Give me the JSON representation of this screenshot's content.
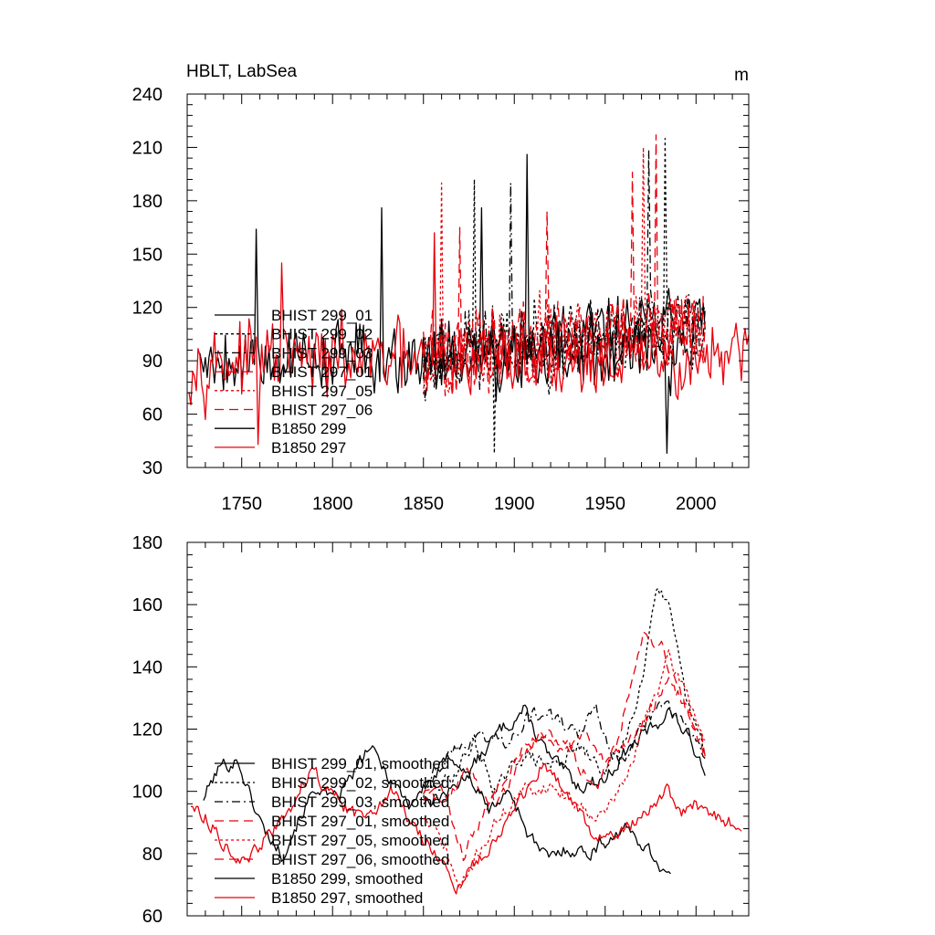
{
  "figure": {
    "title_left": "HBLT, LabSea",
    "title_right": "m"
  },
  "chart_data": [
    {
      "type": "line",
      "title": "HBLT, LabSea",
      "units": "m",
      "xlabel": "",
      "ylabel": "",
      "xlim": [
        1720,
        2029
      ],
      "ylim": [
        30,
        240
      ],
      "xticks": [
        1750,
        1800,
        1850,
        1900,
        1950,
        2000
      ],
      "xtick_labels": [
        "1750",
        "1800",
        "1850",
        "1900",
        "1950",
        "2000"
      ],
      "yticks": [
        30,
        60,
        90,
        120,
        150,
        180,
        210,
        240
      ],
      "ytick_labels": [
        "30",
        "60",
        "90",
        "120",
        "150",
        "180",
        "210",
        "240"
      ],
      "legend": "lower-left",
      "series": [
        {
          "name": "BHIST 299_01",
          "color": "#000000",
          "dash": "solid",
          "kind": "hist",
          "seed": 11,
          "x_start": 1850,
          "x_end": 2005,
          "base": 93,
          "trend": 18,
          "amplitude": 26,
          "peaks": [
            {
              "x": 1907,
              "y": 206
            },
            {
              "x": 1882,
              "y": 176
            }
          ]
        },
        {
          "name": "BHIST 299_02",
          "color": "#000000",
          "dash": "short",
          "kind": "hist",
          "seed": 23,
          "x_start": 1850,
          "x_end": 2005,
          "base": 93,
          "trend": 18,
          "amplitude": 26,
          "peaks": [
            {
              "x": 1983,
              "y": 215
            },
            {
              "x": 1878,
              "y": 192
            },
            {
              "x": 1889,
              "y": 38
            }
          ]
        },
        {
          "name": "BHIST 299_03",
          "color": "#000000",
          "dash": "dashdot",
          "kind": "hist",
          "seed": 37,
          "x_start": 1850,
          "x_end": 2005,
          "base": 93,
          "trend": 18,
          "amplitude": 26,
          "peaks": [
            {
              "x": 1974,
              "y": 208
            },
            {
              "x": 1898,
              "y": 190
            }
          ]
        },
        {
          "name": "BHIST 297_01",
          "color": "#e8000b",
          "dash": "long",
          "kind": "hist",
          "seed": 41,
          "x_start": 1850,
          "x_end": 2005,
          "base": 93,
          "trend": 18,
          "amplitude": 26,
          "peaks": [
            {
              "x": 1965,
              "y": 196
            },
            {
              "x": 1918,
              "y": 174
            }
          ]
        },
        {
          "name": "BHIST 297_05",
          "color": "#e8000b",
          "dash": "short",
          "kind": "hist",
          "seed": 53,
          "x_start": 1850,
          "x_end": 2005,
          "base": 93,
          "trend": 18,
          "amplitude": 26,
          "peaks": [
            {
              "x": 1860,
              "y": 190
            },
            {
              "x": 1971,
              "y": 210
            }
          ]
        },
        {
          "name": "BHIST 297_06",
          "color": "#e8000b",
          "dash": "long",
          "kind": "hist",
          "seed": 67,
          "x_start": 1850,
          "x_end": 2005,
          "base": 93,
          "trend": 18,
          "amplitude": 26,
          "peaks": [
            {
              "x": 1978,
              "y": 217
            },
            {
              "x": 1870,
              "y": 165
            }
          ]
        },
        {
          "name": "B1850 299",
          "color": "#000000",
          "dash": "solid",
          "kind": "ctrl",
          "seed": 79,
          "x_start": 1727,
          "x_end": 1987,
          "base": 92,
          "trend": 0,
          "amplitude": 24,
          "peaks": [
            {
              "x": 1827,
              "y": 176
            },
            {
              "x": 1758,
              "y": 164
            },
            {
              "x": 1984,
              "y": 38
            }
          ]
        },
        {
          "name": "B1850 297",
          "color": "#e8000b",
          "dash": "solid",
          "kind": "ctrl",
          "seed": 97,
          "x_start": 1721,
          "x_end": 2029,
          "base": 90,
          "trend": 0,
          "amplitude": 24,
          "peaks": [
            {
              "x": 1856,
              "y": 162
            },
            {
              "x": 1772,
              "y": 145
            },
            {
              "x": 1759,
              "y": 43
            }
          ]
        }
      ]
    },
    {
      "type": "line",
      "title": "",
      "xlabel": "",
      "ylabel": "",
      "xlim": [
        1720,
        2029
      ],
      "ylim": [
        60,
        180
      ],
      "xticks": [
        1750,
        1800,
        1850,
        1900,
        1950,
        2000
      ],
      "yticks": [
        60,
        80,
        100,
        120,
        140,
        160,
        180
      ],
      "ytick_labels": [
        "60",
        "80",
        "100",
        "120",
        "140",
        "160",
        "180"
      ],
      "legend": "lower-left",
      "series": [
        {
          "name": "BHIST 299_01, smoothed",
          "color": "#000000",
          "dash": "solid",
          "seed": 13,
          "x_start": 1850,
          "x_end": 2005,
          "anchors": [
            [
              1850,
              97
            ],
            [
              1865,
              100
            ],
            [
              1880,
              110
            ],
            [
              1893,
              120
            ],
            [
              1905,
              126
            ],
            [
              1920,
              110
            ],
            [
              1935,
              102
            ],
            [
              1950,
              104
            ],
            [
              1960,
              112
            ],
            [
              1975,
              120
            ],
            [
              1985,
              126
            ],
            [
              1995,
              118
            ],
            [
              2005,
              108
            ]
          ]
        },
        {
          "name": "BHIST 299_02, smoothed",
          "color": "#000000",
          "dash": "short",
          "seed": 29,
          "x_start": 1850,
          "x_end": 2005,
          "anchors": [
            [
              1850,
              99
            ],
            [
              1865,
              104
            ],
            [
              1878,
              116
            ],
            [
              1890,
              100
            ],
            [
              1905,
              112
            ],
            [
              1920,
              108
            ],
            [
              1935,
              114
            ],
            [
              1950,
              106
            ],
            [
              1962,
              118
            ],
            [
              1972,
              142
            ],
            [
              1978,
              167
            ],
            [
              1985,
              158
            ],
            [
              1995,
              128
            ],
            [
              2005,
              112
            ]
          ]
        },
        {
          "name": "BHIST 299_03, smoothed",
          "color": "#000000",
          "dash": "dashdot",
          "seed": 43,
          "x_start": 1850,
          "x_end": 2005,
          "anchors": [
            [
              1850,
              104
            ],
            [
              1865,
              112
            ],
            [
              1880,
              118
            ],
            [
              1895,
              116
            ],
            [
              1908,
              125
            ],
            [
              1920,
              124
            ],
            [
              1935,
              118
            ],
            [
              1945,
              126
            ],
            [
              1958,
              108
            ],
            [
              1970,
              122
            ],
            [
              1982,
              128
            ],
            [
              1995,
              120
            ],
            [
              2005,
              110
            ]
          ]
        },
        {
          "name": "BHIST 297_01, smoothed",
          "color": "#e8000b",
          "dash": "long",
          "seed": 59,
          "x_start": 1850,
          "x_end": 2005,
          "anchors": [
            [
              1850,
              98
            ],
            [
              1863,
              100
            ],
            [
              1876,
              106
            ],
            [
              1890,
              96
            ],
            [
              1905,
              110
            ],
            [
              1915,
              120
            ],
            [
              1930,
              115
            ],
            [
              1945,
              100
            ],
            [
              1955,
              112
            ],
            [
              1965,
              138
            ],
            [
              1972,
              152
            ],
            [
              1982,
              146
            ],
            [
              1992,
              130
            ],
            [
              2005,
              112
            ]
          ]
        },
        {
          "name": "BHIST 297_05, smoothed",
          "color": "#e8000b",
          "dash": "short",
          "seed": 71,
          "x_start": 1850,
          "x_end": 2005,
          "anchors": [
            [
              1850,
              92
            ],
            [
              1862,
              82
            ],
            [
              1870,
              68
            ],
            [
              1880,
              80
            ],
            [
              1892,
              92
            ],
            [
              1905,
              100
            ],
            [
              1920,
              102
            ],
            [
              1935,
              96
            ],
            [
              1948,
              92
            ],
            [
              1962,
              104
            ],
            [
              1975,
              128
            ],
            [
              1985,
              142
            ],
            [
              1995,
              132
            ],
            [
              2005,
              116
            ]
          ]
        },
        {
          "name": "BHIST 297_06, smoothed",
          "color": "#e8000b",
          "dash": "long",
          "seed": 83,
          "x_start": 1850,
          "x_end": 2005,
          "anchors": [
            [
              1850,
              100
            ],
            [
              1862,
              96
            ],
            [
              1872,
              80
            ],
            [
              1885,
              94
            ],
            [
              1898,
              110
            ],
            [
              1912,
              118
            ],
            [
              1925,
              112
            ],
            [
              1938,
              118
            ],
            [
              1950,
              108
            ],
            [
              1962,
              116
            ],
            [
              1975,
              126
            ],
            [
              1985,
              134
            ],
            [
              1995,
              128
            ],
            [
              2005,
              112
            ]
          ]
        },
        {
          "name": "B1850 299, smoothed",
          "color": "#000000",
          "dash": "solid",
          "seed": 101,
          "x_start": 1729,
          "x_end": 1986,
          "anchors": [
            [
              1729,
              98
            ],
            [
              1738,
              108
            ],
            [
              1748,
              110
            ],
            [
              1755,
              98
            ],
            [
              1762,
              88
            ],
            [
              1772,
              80
            ],
            [
              1782,
              92
            ],
            [
              1792,
              102
            ],
            [
              1800,
              96
            ],
            [
              1810,
              104
            ],
            [
              1820,
              114
            ],
            [
              1830,
              106
            ],
            [
              1842,
              96
            ],
            [
              1855,
              104
            ],
            [
              1866,
              112
            ],
            [
              1876,
              104
            ],
            [
              1886,
              94
            ],
            [
              1898,
              100
            ],
            [
              1908,
              86
            ],
            [
              1918,
              78
            ],
            [
              1930,
              82
            ],
            [
              1940,
              80
            ],
            [
              1950,
              84
            ],
            [
              1960,
              88
            ],
            [
              1970,
              84
            ],
            [
              1978,
              78
            ],
            [
              1986,
              72
            ]
          ]
        },
        {
          "name": "B1850 297, smoothed",
          "color": "#e8000b",
          "dash": "solid",
          "seed": 113,
          "x_start": 1722,
          "x_end": 2025,
          "anchors": [
            [
              1722,
              96
            ],
            [
              1730,
              92
            ],
            [
              1740,
              84
            ],
            [
              1752,
              76
            ],
            [
              1762,
              84
            ],
            [
              1775,
              92
            ],
            [
              1788,
              108
            ],
            [
              1800,
              98
            ],
            [
              1812,
              92
            ],
            [
              1824,
              96
            ],
            [
              1834,
              100
            ],
            [
              1845,
              88
            ],
            [
              1855,
              82
            ],
            [
              1862,
              76
            ],
            [
              1868,
              66
            ],
            [
              1875,
              74
            ],
            [
              1885,
              82
            ],
            [
              1895,
              90
            ],
            [
              1905,
              98
            ],
            [
              1915,
              108
            ],
            [
              1925,
              102
            ],
            [
              1935,
              94
            ],
            [
              1945,
              84
            ],
            [
              1955,
              86
            ],
            [
              1965,
              90
            ],
            [
              1975,
              96
            ],
            [
              1985,
              100
            ],
            [
              1992,
              92
            ],
            [
              2000,
              96
            ],
            [
              2010,
              92
            ],
            [
              2018,
              90
            ],
            [
              2025,
              87
            ]
          ]
        }
      ]
    }
  ]
}
